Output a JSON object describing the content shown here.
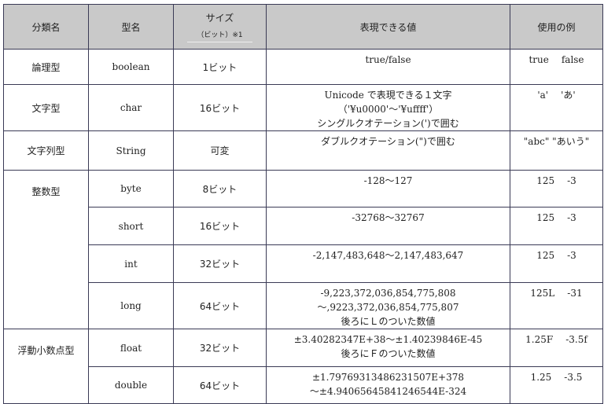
{
  "headers": {
    "category": "分類名",
    "type": "型名",
    "size": "サイズ",
    "size_sub": "（ビット）※1",
    "values": "表現できる値",
    "examples": "使用の例"
  },
  "rows": [
    {
      "category": "論理型",
      "type": "boolean",
      "size": "1ビット",
      "values": [
        "true/false"
      ],
      "examples": [
        "true",
        "false"
      ]
    },
    {
      "category": "文字型",
      "type": "char",
      "size": "16ビット",
      "values": [
        "Unicode で表現できる１文字",
        "（'¥u0000'〜'¥uffff'）",
        "シングルクオテーション(')で囲む"
      ],
      "examples": [
        "'a'",
        "'あ'"
      ]
    },
    {
      "category": "文字列型",
      "type": "String",
      "size": "可変",
      "values": [
        "ダブルクオテーション(\")で囲む"
      ],
      "examples": [
        "\"abc\" \"あいう\""
      ]
    },
    {
      "category": "整数型",
      "type": "byte",
      "size": "8ビット",
      "values": [
        "-128〜127"
      ],
      "examples": [
        "125",
        "-3"
      ]
    },
    {
      "type": "short",
      "size": "16ビット",
      "values": [
        "-32768〜32767"
      ],
      "examples": [
        "125",
        "-3"
      ]
    },
    {
      "type": "int",
      "size": "32ビット",
      "values": [
        "-2,147,483,648〜2,147,483,647"
      ],
      "examples": [
        "125",
        "-3"
      ]
    },
    {
      "type": "long",
      "size": "64ビット",
      "values": [
        "-9,223,372,036,854,775,808",
        "〜,9223,372,036,854,775,807",
        "後ろにＬのついた数値"
      ],
      "examples": [
        "125L",
        "-31"
      ]
    },
    {
      "category": "浮動小数点型",
      "type": "float",
      "size": "32ビット",
      "values": [
        "±3.40282347E+38〜±1.40239846E-45",
        "後ろにＦのついた数値"
      ],
      "examples": [
        "1.25F",
        "-3.5f"
      ]
    },
    {
      "type": "double",
      "size": "64ビット",
      "values": [
        "±1.79769313486231507E+378",
        "〜±4.94065645841246544E-324"
      ],
      "examples": [
        "1.25",
        "-3.5"
      ]
    }
  ]
}
